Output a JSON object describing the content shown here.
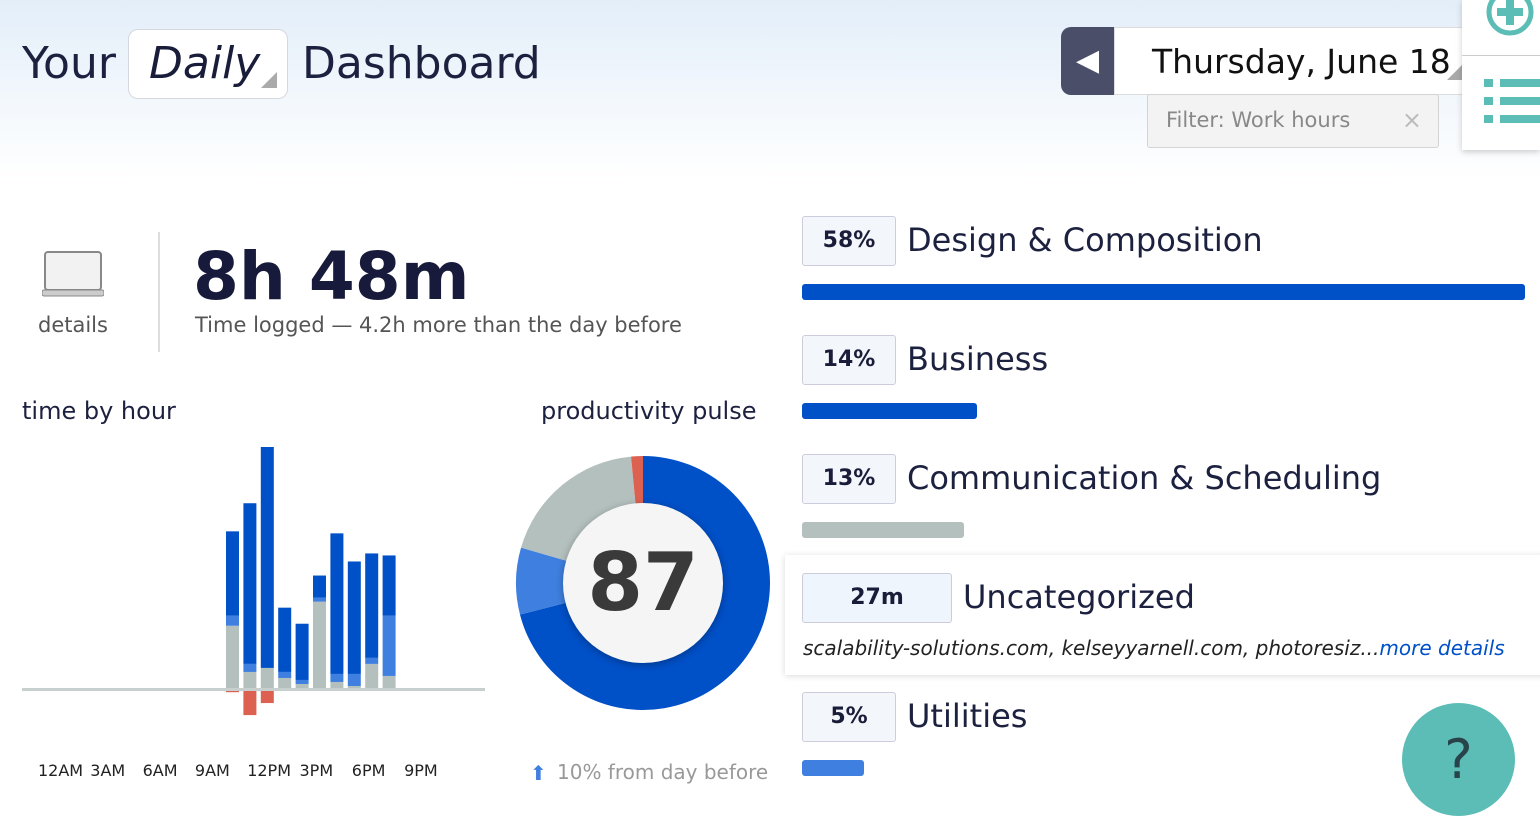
{
  "header": {
    "prefix": "Your",
    "period": "Daily",
    "suffix": "Dashboard",
    "date": "Thursday, June 18",
    "filter": "Filter: Work hours",
    "filter_clear": "×"
  },
  "summary": {
    "details_label": "details",
    "total": "8h 48m",
    "subtitle": "Time logged — 4.2h more than the day before"
  },
  "time_by_hour": {
    "title": "time by hour"
  },
  "pulse": {
    "title": "productivity pulse",
    "score": "87",
    "change": "10% from day before"
  },
  "categories": [
    {
      "badge": "58%",
      "name": "Design & Composition",
      "fraction": 0.58,
      "color": "#0050c8"
    },
    {
      "badge": "14%",
      "name": "Business",
      "fraction": 0.14,
      "color": "#0050c8"
    },
    {
      "badge": "13%",
      "name": "Communication & Scheduling",
      "fraction": 0.13,
      "color": "#b4c0be"
    },
    {
      "badge": "27m",
      "name": "Uncategorized",
      "sites": "scalability-solutions.com, kelseyyarnell.com, photoresiz...",
      "more": "more details"
    },
    {
      "badge": "5%",
      "name": "Utilities",
      "fraction": 0.05,
      "color": "#3f7fdf"
    }
  ],
  "help": "?",
  "colors": {
    "very_productive": "#0050c8",
    "productive": "#3f7fdf",
    "neutral": "#b4c0be",
    "distracting": "#dd6150",
    "accent": "#5bbdb6"
  },
  "chart_data": [
    {
      "type": "bar",
      "title": "time by hour",
      "stacked": true,
      "x_tick_labels": [
        "12AM",
        "3AM",
        "6AM",
        "9AM",
        "12PM",
        "3PM",
        "6PM",
        "9PM"
      ],
      "categories": [
        "10AM",
        "11AM",
        "12PM",
        "1PM",
        "2PM",
        "3PM",
        "4PM",
        "5PM",
        "6PM",
        "7PM"
      ],
      "series": [
        {
          "key": "neutral",
          "color": "#b4c0be",
          "values": [
            15.5,
            4,
            5,
            2.5,
            1,
            21.5,
            1.5,
            0.5,
            6,
            3
          ]
        },
        {
          "key": "productive",
          "color": "#3f7fdf",
          "values": [
            2.5,
            2,
            0,
            1.5,
            1,
            1,
            2,
            3,
            1.5,
            15
          ]
        },
        {
          "key": "very_productive",
          "color": "#0050c8",
          "values": [
            21,
            40,
            55,
            16,
            14,
            5.5,
            35,
            28,
            26,
            15
          ]
        },
        {
          "key": "distracting",
          "color": "#dd6150",
          "values": [
            0.3,
            6,
            3,
            0,
            0,
            0,
            0,
            0,
            0,
            0
          ]
        }
      ],
      "ylim": [
        -15,
        60
      ],
      "grid": false
    },
    {
      "type": "pie",
      "title": "productivity pulse",
      "donut": true,
      "slices": [
        {
          "key": "very_productive",
          "value": 71,
          "color": "#0050c8"
        },
        {
          "key": "productive",
          "value": 8.5,
          "color": "#3f7fdf"
        },
        {
          "key": "neutral",
          "value": 19,
          "color": "#b4c0be"
        },
        {
          "key": "distracting",
          "value": 1.5,
          "color": "#dd6150"
        }
      ]
    }
  ]
}
